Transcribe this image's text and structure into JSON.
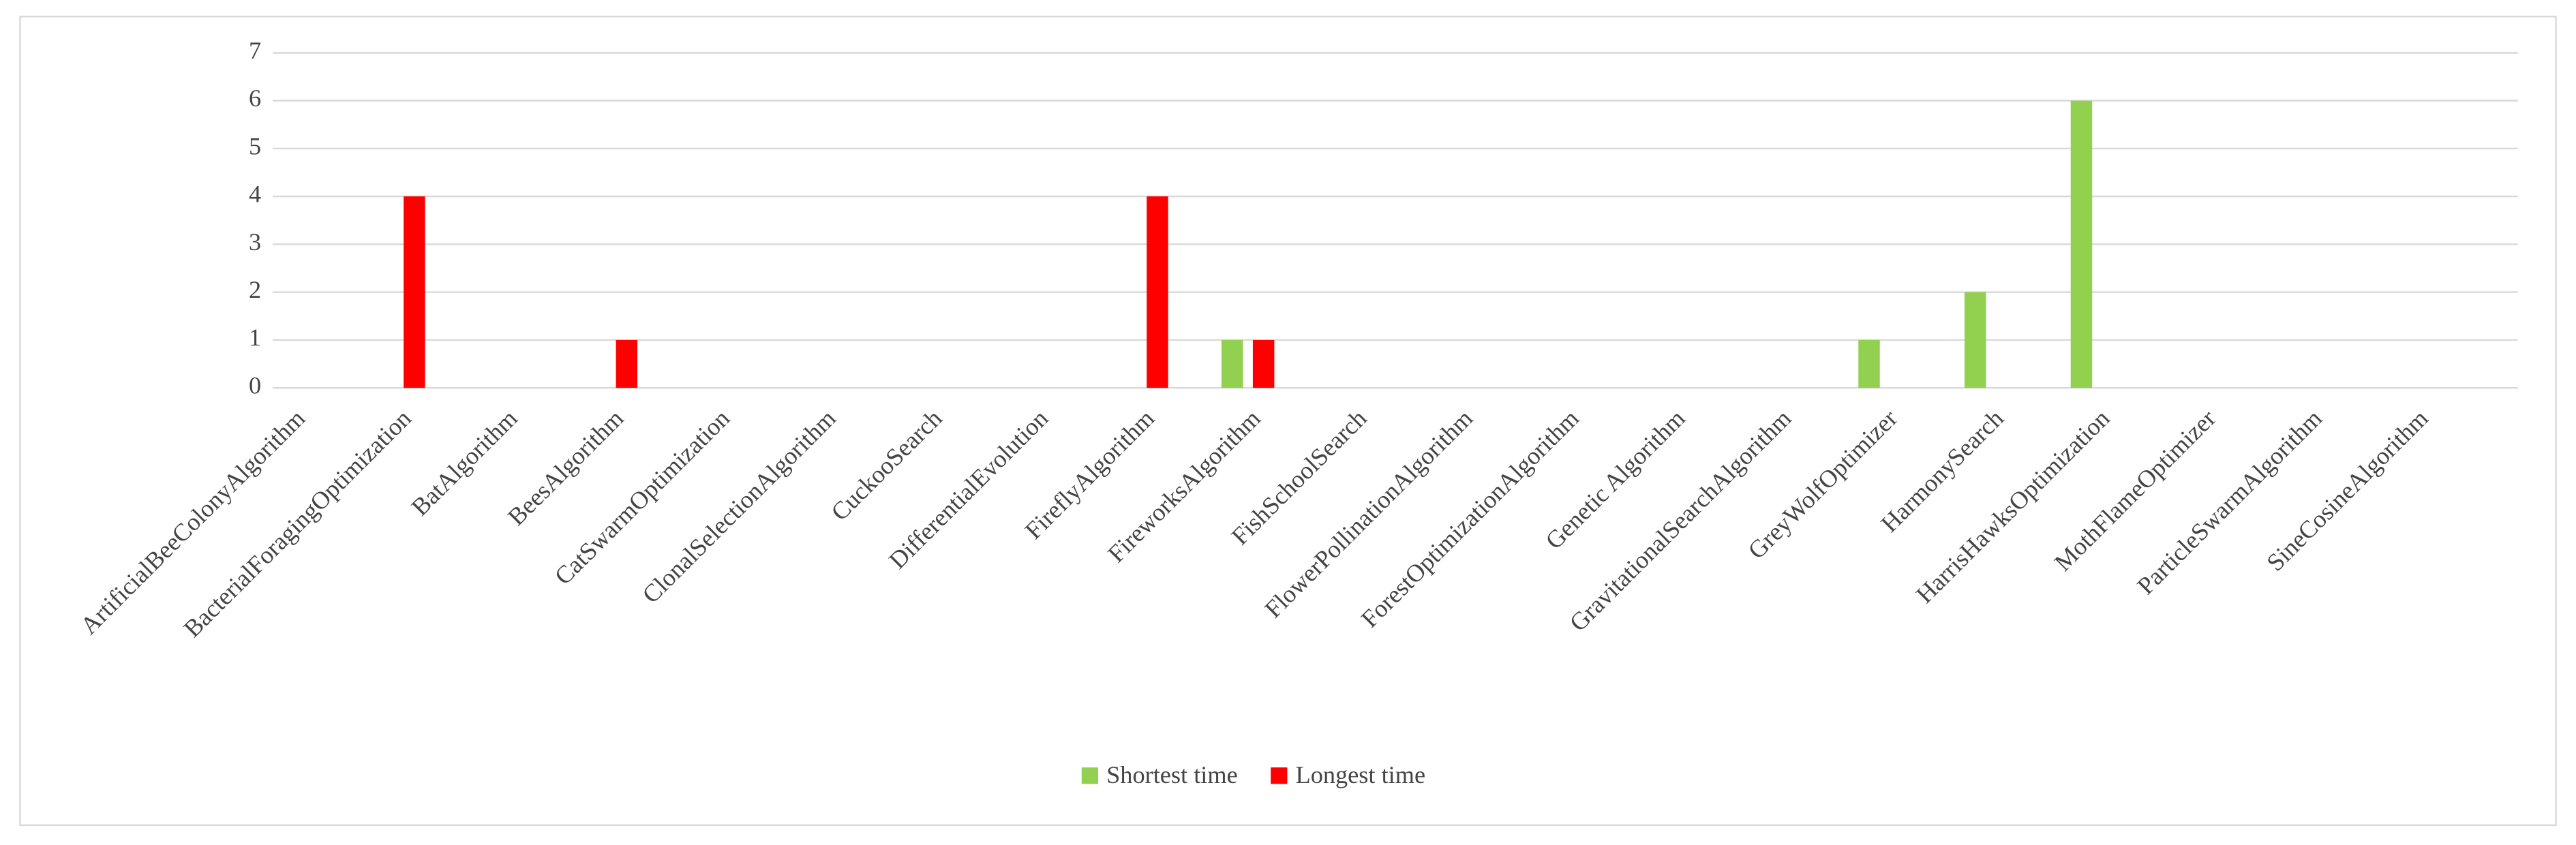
{
  "chart_data": {
    "type": "bar",
    "categories": [
      "ArtificialBeeColonyAlgorithm",
      "BacterialForagingOptimization",
      "BatAlgorithm",
      "BeesAlgorithm",
      "CatSwarmOptimization",
      "ClonalSelectionAlgorithm",
      "CuckooSearch",
      "DifferentialEvolution",
      "FireflyAlgorithm",
      "FireworksAlgorithm",
      "FishSchoolSearch",
      "FlowerPollinationAlgorithm",
      "ForestOptimizationAlgorithm",
      "Genetic Algorithm",
      "GravitationalSearchAlgorithm",
      "GreyWolfOptimizer",
      "HarmonySearch",
      "HarrisHawksOptimization",
      "MothFlameOptimizer",
      "ParticleSwarmAlgorithm",
      "SineCosineAlgorithm"
    ],
    "series": [
      {
        "name": "Shortest time",
        "color": "#92d050",
        "values": [
          0,
          0,
          0,
          0,
          0,
          0,
          0,
          0,
          0,
          1,
          0,
          0,
          0,
          0,
          0,
          1,
          2,
          6,
          0,
          0,
          0
        ]
      },
      {
        "name": "Longest time",
        "color": "#ff0000",
        "values": [
          0,
          4,
          0,
          1,
          0,
          0,
          0,
          0,
          4,
          1,
          0,
          0,
          0,
          0,
          0,
          0,
          0,
          0,
          0,
          0,
          0
        ]
      }
    ],
    "ylim": [
      0,
      7
    ],
    "yticks": [
      0,
      1,
      2,
      3,
      4,
      5,
      6,
      7
    ],
    "grid": true,
    "legend": "bottom"
  }
}
